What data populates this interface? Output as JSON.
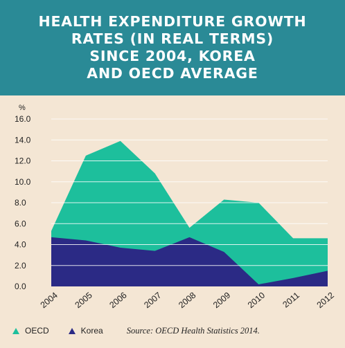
{
  "title": "HEALTH EXPENDITURE GROWTH\nRATES (IN REAL TERMS)\nSINCE 2004, KOREA\nAND OECD AVERAGE",
  "source": "Source: OECD Health Statistics 2014.",
  "colors": {
    "header": "#2a8a96",
    "background": "#f4e6d4",
    "oecd": "#1dbf9c",
    "korea": "#2b2a85"
  },
  "chart_data": {
    "type": "area",
    "ylabel": "%",
    "xlabel": "",
    "ylim": [
      0,
      16
    ],
    "yticks": [
      "16.0",
      "14.0",
      "12.0",
      "10.0",
      "8.0",
      "6.0",
      "4.0",
      "2.0",
      "0.0"
    ],
    "x": [
      "2004",
      "2005",
      "2006",
      "2007",
      "2008",
      "2009",
      "2010",
      "2011",
      "2012"
    ],
    "series": [
      {
        "name": "OECD",
        "values": [
          5.3,
          12.5,
          13.9,
          10.8,
          5.6,
          8.3,
          8.0,
          4.6,
          4.6
        ]
      },
      {
        "name": "Korea",
        "values": [
          4.7,
          4.4,
          3.7,
          3.4,
          4.7,
          3.3,
          0.2,
          0.8,
          1.5
        ]
      }
    ],
    "grid": true,
    "legend_position": "bottom-left"
  }
}
